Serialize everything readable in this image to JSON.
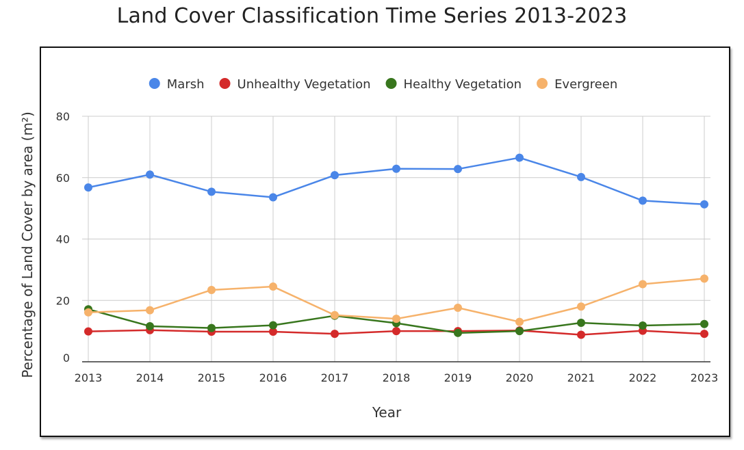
{
  "chart_data": {
    "type": "line",
    "title": "Land Cover Classification Time Series 2013-2023",
    "xlabel": "Year",
    "ylabel": "Percentage of Land Cover by area (m²)",
    "categories": [
      "2013",
      "2014",
      "2015",
      "2016",
      "2017",
      "2018",
      "2019",
      "2020",
      "2021",
      "2022",
      "2023"
    ],
    "ylim": [
      0,
      80
    ],
    "yticks": [
      "0",
      "20",
      "40",
      "60",
      "80"
    ],
    "grid": true,
    "legend_position": "top",
    "series": [
      {
        "name": "Marsh",
        "color": "#4a86e8",
        "values": [
          56.8,
          61.0,
          55.4,
          53.6,
          60.8,
          62.9,
          62.8,
          66.5,
          60.2,
          52.5,
          51.3
        ]
      },
      {
        "name": "Unhealthy Vegetation",
        "color": "#d42a2a",
        "values": [
          9.9,
          10.3,
          9.8,
          9.8,
          9.1,
          10.0,
          10.0,
          10.2,
          8.8,
          10.1,
          9.1
        ]
      },
      {
        "name": "Healthy Vegetation",
        "color": "#38761d",
        "values": [
          17.1,
          11.6,
          11.0,
          11.9,
          15.0,
          12.6,
          9.4,
          10.0,
          12.7,
          11.8,
          12.3
        ]
      },
      {
        "name": "Evergreen",
        "color": "#f6b26b",
        "values": [
          16.1,
          16.8,
          23.4,
          24.5,
          15.2,
          14.0,
          17.6,
          13.0,
          18.0,
          25.3,
          27.1
        ]
      }
    ]
  }
}
